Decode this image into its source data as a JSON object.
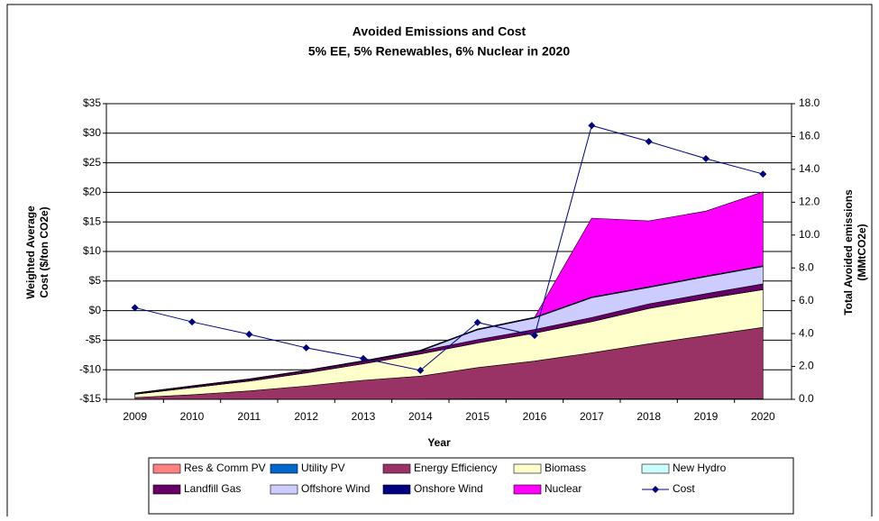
{
  "chart_data": {
    "type": "area-line",
    "title": "Avoided Emissions and Cost",
    "subtitle": "5% EE, 5% Renewables, 6% Nuclear in 2020",
    "x_label": "Year",
    "y_label": [
      "Weighted Average",
      "Cost ($/ton CO2e)"
    ],
    "y2_label": [
      "Total Avoided emissions",
      "(MMtCO2e)"
    ],
    "categories": [
      "2009",
      "2010",
      "2011",
      "2012",
      "2013",
      "2014",
      "2015",
      "2016",
      "2017",
      "2018",
      "2019",
      "2020"
    ],
    "series": [
      {
        "name": "Res & Comm PV",
        "color": "#ff8080",
        "kind": "area",
        "axis": "y2",
        "values": [
          0.01,
          0.01,
          0.01,
          0.01,
          0.01,
          0.01,
          0.02,
          0.02,
          0.02,
          0.02,
          0.02,
          0.02
        ]
      },
      {
        "name": "Utility PV",
        "color": "#0066cc",
        "kind": "area",
        "axis": "y2",
        "values": [
          0,
          0,
          0,
          0,
          0,
          0,
          0.01,
          0.01,
          0.01,
          0.01,
          0.01,
          0.01
        ]
      },
      {
        "name": "Energy Efficiency",
        "color": "#993366",
        "kind": "area",
        "axis": "y2",
        "values": [
          0.1,
          0.27,
          0.5,
          0.8,
          1.15,
          1.4,
          1.9,
          2.3,
          2.8,
          3.35,
          3.85,
          4.35
        ]
      },
      {
        "name": "Biomass",
        "color": "#ffffcc",
        "kind": "area",
        "axis": "y2",
        "values": [
          0.2,
          0.43,
          0.6,
          0.8,
          1.0,
          1.35,
          1.5,
          1.7,
          1.9,
          2.15,
          2.25,
          2.3
        ]
      },
      {
        "name": "New Hydro",
        "color": "#ccffff",
        "kind": "area",
        "axis": "y2",
        "values": [
          0,
          0,
          0,
          0,
          0,
          0,
          0,
          0,
          0,
          0,
          0,
          0
        ]
      },
      {
        "name": "Landfill Gas",
        "color": "#660066",
        "kind": "area",
        "axis": "y2",
        "values": [
          0.05,
          0.08,
          0.1,
          0.12,
          0.15,
          0.18,
          0.2,
          0.22,
          0.25,
          0.28,
          0.3,
          0.35
        ]
      },
      {
        "name": "Offshore Wind",
        "color": "#ccccff",
        "kind": "area",
        "axis": "y2",
        "values": [
          0,
          0,
          0,
          0,
          0,
          0,
          0.6,
          0.7,
          1.2,
          1.0,
          1.03,
          1.05
        ]
      },
      {
        "name": "Onshore Wind",
        "color": "#000080",
        "kind": "area",
        "axis": "y2",
        "values": [
          0.02,
          0.03,
          0.03,
          0.04,
          0.04,
          0.05,
          0.05,
          0.05,
          0.05,
          0.05,
          0.05,
          0.05
        ]
      },
      {
        "name": "Nuclear",
        "color": "#ff00ff",
        "kind": "area",
        "axis": "y2",
        "values": [
          0,
          0,
          0,
          0,
          0,
          0,
          0,
          0,
          4.8,
          4.0,
          3.95,
          4.5
        ]
      },
      {
        "name": "Cost",
        "color": "#000080",
        "kind": "line",
        "axis": "y",
        "values": [
          0.5,
          -1.9,
          -4.0,
          -6.3,
          -8.1,
          -10.1,
          -2.0,
          -4.2,
          31.3,
          28.6,
          25.7,
          23.1
        ]
      }
    ],
    "ylim": [
      -15,
      35
    ],
    "yticks": [
      {
        "value": -15,
        "label": "-$15"
      },
      {
        "value": -10,
        "label": "-$10"
      },
      {
        "value": -5,
        "label": "-$5"
      },
      {
        "value": 0,
        "label": "$0"
      },
      {
        "value": 5,
        "label": "$5"
      },
      {
        "value": 10,
        "label": "$10"
      },
      {
        "value": 15,
        "label": "$15"
      },
      {
        "value": 20,
        "label": "$20"
      },
      {
        "value": 25,
        "label": "$25"
      },
      {
        "value": 30,
        "label": "$30"
      },
      {
        "value": 35,
        "label": "$35"
      }
    ],
    "y2lim": [
      0,
      18
    ],
    "y2ticks": [
      {
        "value": 0,
        "label": "0.0"
      },
      {
        "value": 2,
        "label": "2.0"
      },
      {
        "value": 4,
        "label": "4.0"
      },
      {
        "value": 6,
        "label": "6.0"
      },
      {
        "value": 8,
        "label": "8.0"
      },
      {
        "value": 10,
        "label": "10.0"
      },
      {
        "value": 12,
        "label": "12.0"
      },
      {
        "value": 14,
        "label": "14.0"
      },
      {
        "value": 16,
        "label": "16.0"
      },
      {
        "value": 18,
        "label": "18.0"
      }
    ],
    "grid": true,
    "legend": "bottom"
  }
}
